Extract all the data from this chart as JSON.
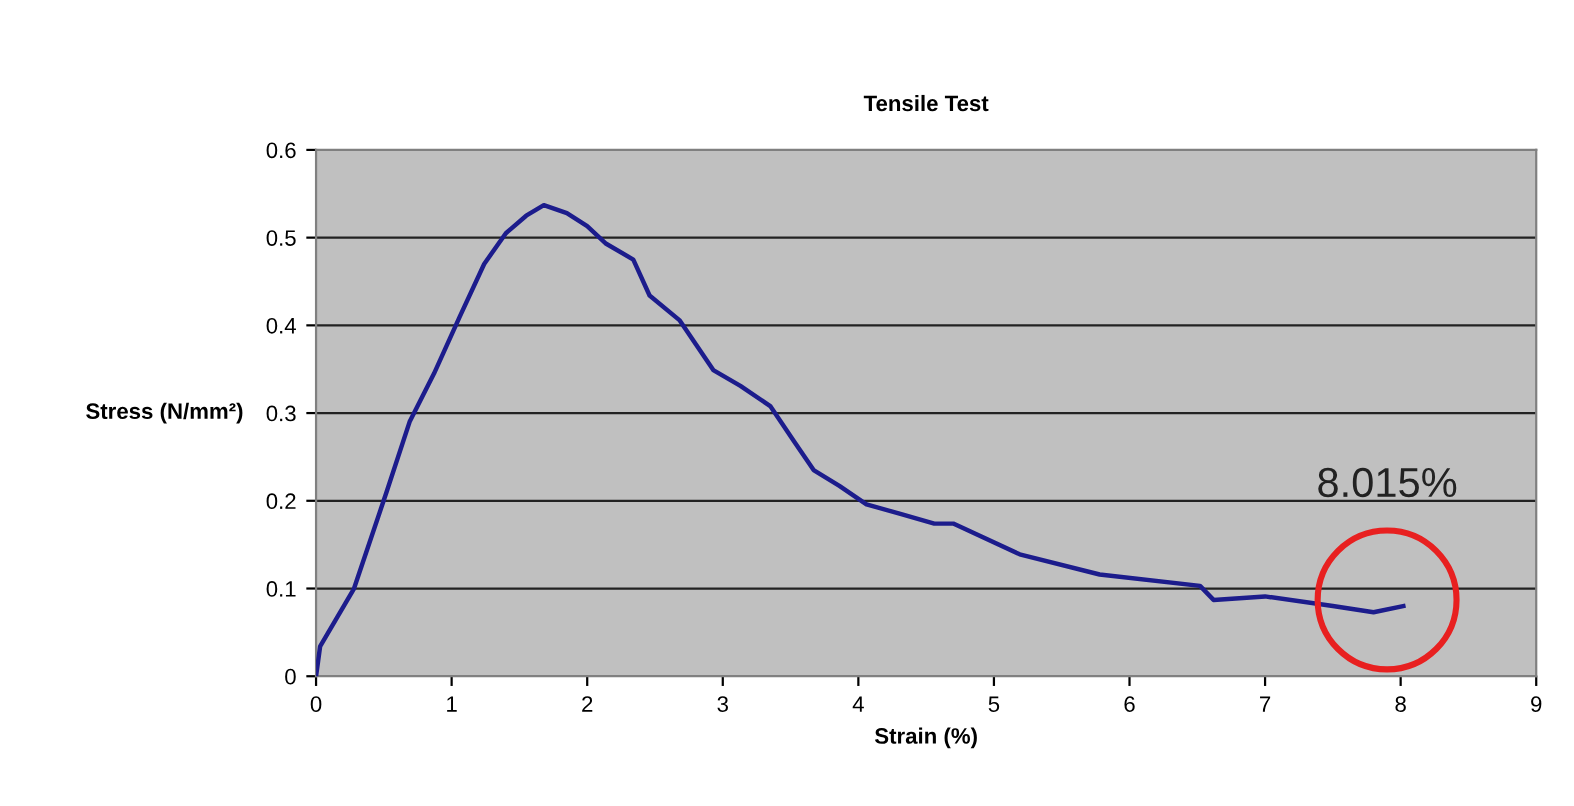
{
  "chart_data": {
    "type": "line",
    "title": "Tensile Test",
    "xlabel": "Strain (%)",
    "ylabel": "Stress (N/mm²)",
    "x": [
      0,
      0.03,
      0.28,
      0.52,
      0.69,
      0.87,
      1.06,
      1.24,
      1.4,
      1.55,
      1.68,
      1.85,
      2.0,
      2.14,
      2.34,
      2.46,
      2.68,
      2.93,
      3.13,
      3.35,
      3.52,
      3.67,
      3.86,
      4.06,
      4.31,
      4.56,
      4.7,
      5.19,
      5.78,
      6.52,
      6.62,
      7.0,
      7.5,
      7.8,
      8.02
    ],
    "series": [
      {
        "color": "#1c1c8c",
        "values": [
          0,
          0.034,
          0.1,
          0.21,
          0.29,
          0.345,
          0.41,
          0.47,
          0.505,
          0.525,
          0.537,
          0.528,
          0.513,
          0.493,
          0.475,
          0.434,
          0.406,
          0.349,
          0.331,
          0.308,
          0.269,
          0.235,
          0.217,
          0.196,
          0.185,
          0.174,
          0.174,
          0.139,
          0.116,
          0.103,
          0.087,
          0.091,
          0.08,
          0.073,
          0.08
        ]
      }
    ],
    "xlim": [
      0,
      9
    ],
    "xticks": [
      0,
      1,
      2,
      3,
      4,
      5,
      6,
      7,
      8,
      9
    ],
    "ylim": [
      0,
      0.6
    ],
    "yticks": [
      0,
      0.1,
      0.2,
      0.3,
      0.4,
      0.5,
      0.6
    ],
    "grid": "y",
    "marker": "none",
    "line_style": "solid",
    "annotations": [
      {
        "text": "8.015%",
        "x": 7.9,
        "y": 0.087
      }
    ]
  }
}
